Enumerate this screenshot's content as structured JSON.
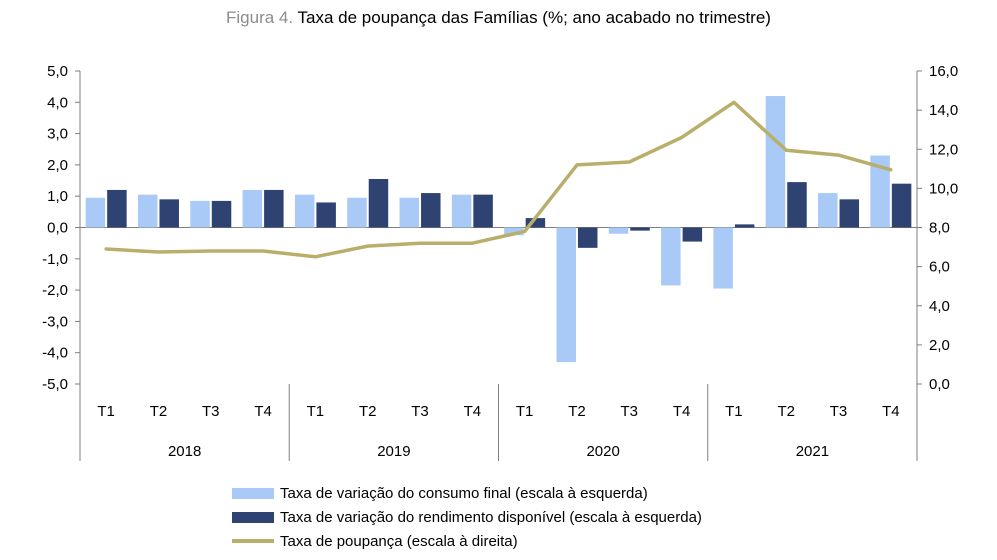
{
  "header": {
    "figure_label": "Figura 4.",
    "title": "Taxa de poupança das Famílias (%; ano acabado no trimestre)"
  },
  "colors": {
    "consumo": "#a9c9f6",
    "rendimento": "#2f4373",
    "poupanca": "#b9ae6a",
    "axis": "#7f7f7f"
  },
  "chart_data": {
    "type": "bar+line",
    "title": "Taxa de poupança das Famílias (%; ano acabado no trimestre)",
    "years": [
      "2018",
      "2019",
      "2020",
      "2021"
    ],
    "quarters": [
      "T1",
      "T2",
      "T3",
      "T4"
    ],
    "categories": [
      "2018 T1",
      "2018 T2",
      "2018 T3",
      "2018 T4",
      "2019 T1",
      "2019 T2",
      "2019 T3",
      "2019 T4",
      "2020 T1",
      "2020 T2",
      "2020 T3",
      "2020 T4",
      "2021 T1",
      "2021 T2",
      "2021 T3",
      "2021 T4"
    ],
    "y_left": {
      "range": [
        -5,
        5
      ],
      "ticks": [
        "5,0",
        "4,0",
        "3,0",
        "2,0",
        "1,0",
        "0,0",
        "-1,0",
        "-2,0",
        "-3,0",
        "-4,0",
        "-5,0"
      ]
    },
    "y_right": {
      "range": [
        0,
        16
      ],
      "ticks": [
        "16,0",
        "14,0",
        "12,0",
        "10,0",
        "8,0",
        "6,0",
        "4,0",
        "2,0",
        "0,0"
      ]
    },
    "series": [
      {
        "name": "Taxa de variação do consumo final (escala à esquerda)",
        "axis": "left",
        "kind": "bar",
        "values": [
          0.95,
          1.05,
          0.85,
          1.2,
          1.05,
          0.95,
          0.95,
          1.05,
          -0.25,
          -4.3,
          -0.2,
          -1.85,
          -1.95,
          4.2,
          1.1,
          2.3
        ]
      },
      {
        "name": "Taxa de variação do rendimento disponível (escala à esquerda)",
        "axis": "left",
        "kind": "bar",
        "values": [
          1.2,
          0.9,
          0.85,
          1.2,
          0.8,
          1.55,
          1.1,
          1.05,
          0.3,
          -0.65,
          -0.1,
          -0.45,
          0.1,
          1.45,
          0.9,
          1.4
        ]
      },
      {
        "name": "Taxa de poupança (escala à direita)",
        "axis": "right",
        "kind": "line",
        "values": [
          6.9,
          6.75,
          6.8,
          6.8,
          6.5,
          7.05,
          7.2,
          7.2,
          7.8,
          11.2,
          11.35,
          12.6,
          14.4,
          11.95,
          11.7,
          10.95
        ]
      }
    ],
    "legend_position": "bottom"
  }
}
